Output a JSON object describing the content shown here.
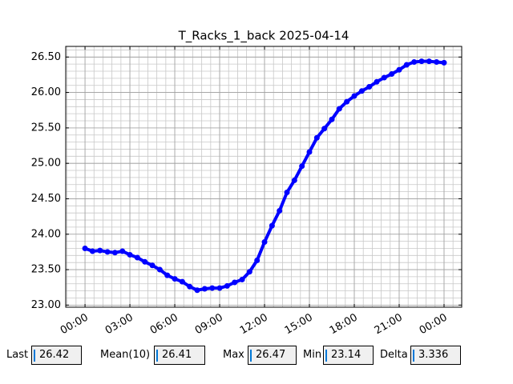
{
  "chart_data": {
    "type": "line",
    "title": "T_Racks_1_back 2025-04-14",
    "x": [
      0,
      0.5,
      1,
      1.5,
      2,
      2.5,
      3,
      3.5,
      4,
      4.5,
      5,
      5.5,
      6,
      6.5,
      7,
      7.5,
      8,
      8.5,
      9,
      9.5,
      10,
      10.5,
      11,
      11.5,
      12,
      12.5,
      13,
      13.5,
      14,
      14.5,
      15,
      15.5,
      16,
      16.5,
      17,
      17.5,
      18,
      18.5,
      19,
      19.5,
      20,
      20.5,
      21,
      21.5,
      22,
      22.5,
      23,
      23.5,
      24
    ],
    "series": [
      {
        "color": "#0000ff",
        "values": [
          23.8,
          23.76,
          23.77,
          23.75,
          23.74,
          23.76,
          23.71,
          23.67,
          23.61,
          23.56,
          23.5,
          23.42,
          23.37,
          23.33,
          23.26,
          23.21,
          23.23,
          23.24,
          23.24,
          23.27,
          23.32,
          23.36,
          23.47,
          23.63,
          23.89,
          24.12,
          24.33,
          24.59,
          24.76,
          24.96,
          25.16,
          25.36,
          25.49,
          25.62,
          25.77,
          25.87,
          25.95,
          26.02,
          26.08,
          26.15,
          26.21,
          26.26,
          26.32,
          26.39,
          26.43,
          26.44,
          26.44,
          26.43,
          26.42
        ]
      }
    ],
    "xlim": [
      -1.29,
      25.18
    ],
    "xticks": [
      {
        "value": 0,
        "label": "00:00"
      },
      {
        "value": 3,
        "label": "03:00"
      },
      {
        "value": 6,
        "label": "06:00"
      },
      {
        "value": 9,
        "label": "09:00"
      },
      {
        "value": 12,
        "label": "12:00"
      },
      {
        "value": 15,
        "label": "15:00"
      },
      {
        "value": 18,
        "label": "18:00"
      },
      {
        "value": 21,
        "label": "21:00"
      },
      {
        "value": 24,
        "label": "00:00"
      }
    ],
    "ylim": [
      22.97,
      26.65
    ],
    "yticks": [
      {
        "value": 23,
        "label": "23.00"
      },
      {
        "value": 23.5,
        "label": "23.50"
      },
      {
        "value": 24,
        "label": "24.00"
      },
      {
        "value": 24.5,
        "label": "24.50"
      },
      {
        "value": 25,
        "label": "25.00"
      },
      {
        "value": 25.5,
        "label": "25.50"
      },
      {
        "value": 26,
        "label": "26.00"
      },
      {
        "value": 26.5,
        "label": "26.50"
      }
    ],
    "grid": true,
    "minor_grid": true
  },
  "stats": [
    {
      "label": "Last",
      "value": 26.42
    },
    {
      "label": "Mean(10)",
      "value": 26.41
    },
    {
      "label": "Max",
      "value": 26.47
    },
    {
      "label": "Min",
      "value": 23.14
    },
    {
      "label": "Delta",
      "value": 3.336
    }
  ]
}
